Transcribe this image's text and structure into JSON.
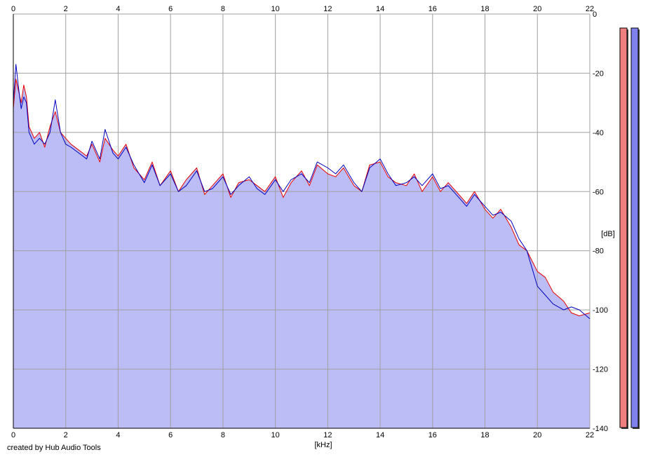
{
  "chart_data": {
    "type": "area",
    "title": "",
    "xlabel": "[kHz]",
    "ylabel": "[dB]",
    "xlim": [
      0,
      22
    ],
    "ylim": [
      -140,
      0
    ],
    "x_ticks": [
      0,
      2,
      4,
      6,
      8,
      10,
      12,
      14,
      16,
      18,
      20,
      22
    ],
    "y_ticks": [
      0,
      -20,
      -40,
      -60,
      -80,
      -100,
      -120,
      -140
    ],
    "grid": true,
    "legend": "none",
    "colors": {
      "plot_bg": "#ffffff",
      "grid": "#a0a0a0",
      "fill": "#bcbcf6",
      "channel_1": "#e80000",
      "channel_2": "#0000c0",
      "meter_1": "#f08080",
      "meter_2": "#8080ee"
    },
    "series": [
      {
        "color": "#e80000",
        "x": [
          0,
          0.1,
          0.2,
          0.3,
          0.4,
          0.5,
          0.6,
          0.8,
          1.0,
          1.2,
          1.4,
          1.6,
          1.8,
          2.0,
          2.2,
          2.5,
          2.8,
          3.0,
          3.3,
          3.5,
          3.8,
          4.0,
          4.3,
          4.6,
          5.0,
          5.3,
          5.6,
          6.0,
          6.3,
          6.6,
          7.0,
          7.3,
          7.6,
          8.0,
          8.3,
          8.6,
          9.0,
          9.3,
          9.6,
          10.0,
          10.3,
          10.6,
          11.0,
          11.3,
          11.6,
          12.0,
          12.3,
          12.6,
          13.0,
          13.3,
          13.6,
          14.0,
          14.3,
          14.6,
          15.0,
          15.3,
          15.6,
          16.0,
          16.3,
          16.6,
          17.0,
          17.3,
          17.6,
          18.0,
          18.3,
          18.6,
          19.0,
          19.3,
          19.6,
          20.0,
          20.3,
          20.6,
          21.0,
          21.3,
          21.6,
          22.0
        ],
        "y": [
          -32,
          -22,
          -26,
          -30,
          -24,
          -28,
          -38,
          -42,
          -40,
          -45,
          -38,
          -33,
          -40,
          -42,
          -44,
          -46,
          -48,
          -44,
          -50,
          -42,
          -46,
          -48,
          -44,
          -52,
          -56,
          -50,
          -58,
          -53,
          -60,
          -56,
          -52,
          -61,
          -58,
          -54,
          -62,
          -57,
          -56,
          -58,
          -60,
          -55,
          -62,
          -57,
          -53,
          -58,
          -51,
          -54,
          -55,
          -52,
          -58,
          -60,
          -51,
          -50,
          -55,
          -57,
          -58,
          -54,
          -60,
          -55,
          -60,
          -57,
          -61,
          -64,
          -60,
          -66,
          -69,
          -66,
          -72,
          -78,
          -80,
          -87,
          -89,
          -94,
          -97,
          -101,
          -102,
          -101
        ],
        "fill": true
      },
      {
        "color": "#0000c0",
        "x": [
          0,
          0.1,
          0.2,
          0.3,
          0.4,
          0.5,
          0.6,
          0.8,
          1.0,
          1.2,
          1.4,
          1.6,
          1.8,
          2.0,
          2.2,
          2.5,
          2.8,
          3.0,
          3.3,
          3.5,
          3.8,
          4.0,
          4.3,
          4.6,
          5.0,
          5.3,
          5.6,
          6.0,
          6.3,
          6.6,
          7.0,
          7.3,
          7.6,
          8.0,
          8.3,
          8.6,
          9.0,
          9.3,
          9.6,
          10.0,
          10.3,
          10.6,
          11.0,
          11.3,
          11.6,
          12.0,
          12.3,
          12.6,
          13.0,
          13.3,
          13.6,
          14.0,
          14.3,
          14.6,
          15.0,
          15.3,
          15.6,
          16.0,
          16.3,
          16.6,
          17.0,
          17.3,
          17.6,
          18.0,
          18.3,
          18.6,
          19.0,
          19.3,
          19.6,
          20.0,
          20.3,
          20.6,
          21.0,
          21.3,
          21.6,
          22.0
        ],
        "y": [
          -30,
          -17,
          -25,
          -32,
          -28,
          -30,
          -40,
          -44,
          -42,
          -44,
          -40,
          -29,
          -40,
          -44,
          -45,
          -47,
          -49,
          -43,
          -49,
          -39,
          -47,
          -49,
          -45,
          -51,
          -57,
          -51,
          -58,
          -54,
          -60,
          -58,
          -53,
          -60,
          -59,
          -55,
          -61,
          -58,
          -55,
          -59,
          -61,
          -56,
          -60,
          -56,
          -54,
          -57,
          -50,
          -52,
          -54,
          -51,
          -57,
          -60,
          -52,
          -49,
          -54,
          -58,
          -57,
          -55,
          -58,
          -54,
          -59,
          -58,
          -62,
          -65,
          -61,
          -65,
          -68,
          -67,
          -70,
          -76,
          -80,
          -92,
          -95,
          -98,
          -100,
          -99,
          -100,
          -103
        ],
        "fill": false
      }
    ]
  },
  "footer": {
    "credit": "created by Hub Audio Tools"
  }
}
